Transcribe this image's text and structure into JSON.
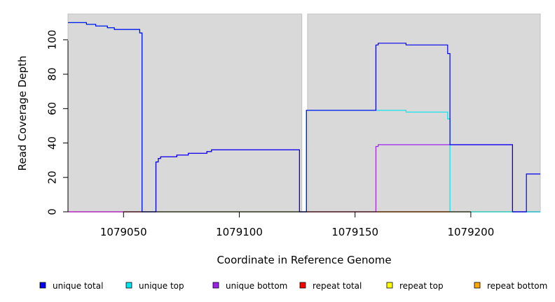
{
  "chart_data": {
    "type": "line",
    "title": "",
    "xlabel": "Coordinate in Reference Genome",
    "ylabel": "Read Coverage Depth",
    "xlim": [
      1079026,
      1079230
    ],
    "ylim": [
      0,
      115
    ],
    "x_ticks": [
      1079050,
      1079100,
      1079150,
      1079200
    ],
    "y_ticks": [
      0,
      20,
      40,
      60,
      80,
      100
    ],
    "grid": false,
    "background_color": "#d9d9d9",
    "gap_x": [
      1079127,
      1079129.5
    ],
    "legend_position": "bottom",
    "series": [
      {
        "name": "unique total",
        "color": "#0000ee",
        "points": [
          [
            1079026,
            110
          ],
          [
            1079034,
            110
          ],
          [
            1079034,
            109
          ],
          [
            1079038,
            109
          ],
          [
            1079038,
            108
          ],
          [
            1079043,
            108
          ],
          [
            1079043,
            107
          ],
          [
            1079046,
            107
          ],
          [
            1079046,
            106
          ],
          [
            1079057,
            106
          ],
          [
            1079057,
            104
          ],
          [
            1079058,
            104
          ],
          [
            1079058,
            0
          ],
          [
            1079064,
            0
          ],
          [
            1079064,
            29
          ],
          [
            1079065,
            29
          ],
          [
            1079065,
            31
          ],
          [
            1079066,
            31
          ],
          [
            1079066,
            32
          ],
          [
            1079073,
            32
          ],
          [
            1079073,
            33
          ],
          [
            1079078,
            33
          ],
          [
            1079078,
            34
          ],
          [
            1079086,
            34
          ],
          [
            1079086,
            35
          ],
          [
            1079088,
            35
          ],
          [
            1079088,
            36
          ],
          [
            1079126,
            36
          ],
          [
            1079126,
            0
          ],
          [
            1079129,
            0
          ],
          [
            1079129,
            59
          ],
          [
            1079159,
            59
          ],
          [
            1079159,
            97
          ],
          [
            1079160,
            97
          ],
          [
            1079160,
            98
          ],
          [
            1079172,
            98
          ],
          [
            1079172,
            97
          ],
          [
            1079190,
            97
          ],
          [
            1079190,
            92
          ],
          [
            1079191,
            92
          ],
          [
            1079191,
            39
          ],
          [
            1079218,
            39
          ],
          [
            1079218,
            0
          ],
          [
            1079224,
            0
          ],
          [
            1079224,
            22
          ],
          [
            1079230,
            22
          ]
        ]
      },
      {
        "name": "unique top",
        "color": "#00e5ee",
        "points": [
          [
            1079026,
            110
          ],
          [
            1079034,
            110
          ],
          [
            1079034,
            109
          ],
          [
            1079038,
            109
          ],
          [
            1079038,
            108
          ],
          [
            1079043,
            108
          ],
          [
            1079043,
            107
          ],
          [
            1079046,
            107
          ],
          [
            1079046,
            106
          ],
          [
            1079057,
            106
          ],
          [
            1079057,
            104
          ],
          [
            1079058,
            104
          ],
          [
            1079058,
            0
          ],
          [
            1079126,
            0
          ],
          [
            1079129,
            0
          ],
          [
            1079129,
            59
          ],
          [
            1079172,
            59
          ],
          [
            1079172,
            58
          ],
          [
            1079190,
            58
          ],
          [
            1079190,
            54
          ],
          [
            1079191,
            54
          ],
          [
            1079191,
            0
          ],
          [
            1079230,
            0
          ]
        ]
      },
      {
        "name": "unique bottom",
        "color": "#a020f0",
        "points": [
          [
            1079026,
            0
          ],
          [
            1079064,
            0
          ],
          [
            1079064,
            29
          ],
          [
            1079065,
            29
          ],
          [
            1079065,
            31
          ],
          [
            1079066,
            31
          ],
          [
            1079066,
            32
          ],
          [
            1079073,
            32
          ],
          [
            1079073,
            33
          ],
          [
            1079078,
            33
          ],
          [
            1079078,
            34
          ],
          [
            1079086,
            34
          ],
          [
            1079086,
            35
          ],
          [
            1079088,
            35
          ],
          [
            1079088,
            36
          ],
          [
            1079126,
            36
          ],
          [
            1079126,
            0
          ],
          [
            1079159,
            0
          ],
          [
            1079159,
            38
          ],
          [
            1079160,
            38
          ],
          [
            1079160,
            39
          ],
          [
            1079218,
            39
          ],
          [
            1079218,
            0
          ],
          [
            1079230,
            0
          ]
        ]
      },
      {
        "name": "repeat total",
        "color": "#ff0000",
        "points": [
          [
            1079026,
            0
          ],
          [
            1079230,
            0
          ]
        ]
      },
      {
        "name": "repeat top",
        "color": "#ffff00",
        "points": [
          [
            1079026,
            0
          ],
          [
            1079230,
            0
          ]
        ]
      },
      {
        "name": "repeat bottom",
        "color": "#ffa500",
        "points": [
          [
            1079159,
            0
          ],
          [
            1079191,
            0
          ]
        ]
      }
    ]
  }
}
